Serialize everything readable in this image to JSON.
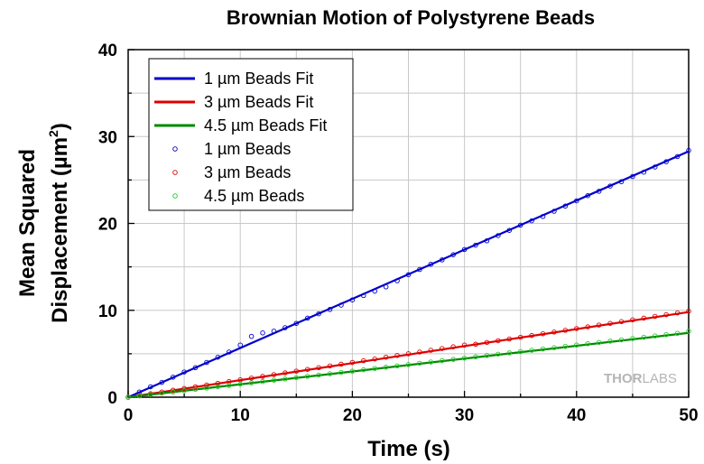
{
  "chart_data": {
    "type": "scatter",
    "title": "Brownian Motion of Polystyrene Beads",
    "xlabel": "Time (s)",
    "ylabel_line1": "Mean Squared",
    "ylabel_line2": "Displacement (µm",
    "ylabel_sup": "2",
    "ylabel_close": ")",
    "xlim": [
      0,
      50
    ],
    "ylim": [
      0,
      40
    ],
    "x_ticks": [
      "0",
      "10",
      "20",
      "30",
      "40",
      "50"
    ],
    "y_ticks": [
      "0",
      "10",
      "20",
      "30",
      "40"
    ],
    "x_tick_values": [
      0,
      10,
      20,
      30,
      40,
      50
    ],
    "y_tick_values": [
      0,
      10,
      20,
      30,
      40
    ],
    "grid": true,
    "legend_position": "top-left",
    "series": [
      {
        "name": "1 µm Beads Fit",
        "kind": "line",
        "color": "#0000cc",
        "x": [
          0,
          50
        ],
        "y": [
          0,
          28.3
        ]
      },
      {
        "name": "3 µm Beads Fit",
        "kind": "line",
        "color": "#dd0000",
        "x": [
          0,
          50
        ],
        "y": [
          0,
          9.8
        ]
      },
      {
        "name": "4.5 µm Beads Fit",
        "kind": "line",
        "color": "#008800",
        "x": [
          0,
          50
        ],
        "y": [
          0,
          7.4
        ]
      },
      {
        "name": "1 µm Beads",
        "kind": "scatter",
        "color": "#0000cc",
        "x": [
          0,
          1,
          2,
          3,
          4,
          5,
          6,
          7,
          8,
          9,
          10,
          11,
          12,
          13,
          14,
          15,
          16,
          17,
          18,
          19,
          20,
          21,
          22,
          23,
          24,
          25,
          26,
          27,
          28,
          29,
          30,
          31,
          32,
          33,
          34,
          35,
          36,
          37,
          38,
          39,
          40,
          41,
          42,
          43,
          44,
          45,
          46,
          47,
          48,
          49,
          50
        ],
        "y": [
          0,
          0.6,
          1.2,
          1.7,
          2.3,
          2.9,
          3.4,
          4.0,
          4.6,
          5.2,
          6.0,
          7.0,
          7.4,
          7.6,
          8.0,
          8.5,
          9.1,
          9.6,
          10.1,
          10.6,
          11.2,
          11.7,
          12.2,
          12.7,
          13.4,
          14.1,
          14.7,
          15.3,
          15.8,
          16.4,
          17.0,
          17.5,
          18.0,
          18.6,
          19.2,
          19.8,
          20.3,
          20.8,
          21.4,
          22.0,
          22.6,
          23.2,
          23.7,
          24.3,
          24.8,
          25.4,
          25.9,
          26.5,
          27.1,
          27.7,
          28.4
        ]
      },
      {
        "name": "3 µm Beads",
        "kind": "scatter",
        "color": "#dd0000",
        "x": [
          0,
          1,
          2,
          3,
          4,
          5,
          6,
          7,
          8,
          9,
          10,
          11,
          12,
          13,
          14,
          15,
          16,
          17,
          18,
          19,
          20,
          21,
          22,
          23,
          24,
          25,
          26,
          27,
          28,
          29,
          30,
          31,
          32,
          33,
          34,
          35,
          36,
          37,
          38,
          39,
          40,
          41,
          42,
          43,
          44,
          45,
          46,
          47,
          48,
          49,
          50
        ],
        "y": [
          0,
          0.2,
          0.4,
          0.6,
          0.8,
          1.0,
          1.2,
          1.4,
          1.6,
          1.8,
          2.0,
          2.2,
          2.4,
          2.6,
          2.8,
          3.0,
          3.2,
          3.4,
          3.6,
          3.8,
          4.0,
          4.2,
          4.4,
          4.6,
          4.8,
          5.0,
          5.2,
          5.4,
          5.6,
          5.8,
          6.0,
          6.1,
          6.3,
          6.5,
          6.7,
          6.9,
          7.1,
          7.3,
          7.5,
          7.7,
          7.9,
          8.1,
          8.3,
          8.5,
          8.7,
          8.9,
          9.1,
          9.3,
          9.5,
          9.7,
          9.9
        ]
      },
      {
        "name": "4.5 µm Beads",
        "kind": "scatter",
        "color": "#22cc22",
        "x": [
          0,
          1,
          2,
          3,
          4,
          5,
          6,
          7,
          8,
          9,
          10,
          11,
          12,
          13,
          14,
          15,
          16,
          17,
          18,
          19,
          20,
          21,
          22,
          23,
          24,
          25,
          26,
          27,
          28,
          29,
          30,
          31,
          32,
          33,
          34,
          35,
          36,
          37,
          38,
          39,
          40,
          41,
          42,
          43,
          44,
          45,
          46,
          47,
          48,
          49,
          50
        ],
        "y": [
          0,
          0.15,
          0.3,
          0.45,
          0.6,
          0.75,
          0.9,
          1.05,
          1.2,
          1.35,
          1.5,
          1.65,
          1.8,
          1.95,
          2.1,
          2.25,
          2.4,
          2.55,
          2.7,
          2.85,
          3.0,
          3.15,
          3.3,
          3.45,
          3.6,
          3.75,
          3.9,
          4.05,
          4.2,
          4.35,
          4.5,
          4.65,
          4.8,
          4.95,
          5.1,
          5.25,
          5.4,
          5.55,
          5.7,
          5.85,
          6.0,
          6.15,
          6.3,
          6.45,
          6.6,
          6.75,
          6.9,
          7.05,
          7.2,
          7.35,
          7.6
        ]
      }
    ]
  },
  "watermark": {
    "part1": "THOR",
    "part2": "LABS"
  }
}
